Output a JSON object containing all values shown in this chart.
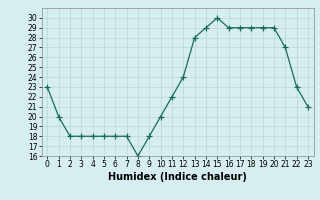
{
  "x": [
    0,
    1,
    2,
    3,
    4,
    5,
    6,
    7,
    8,
    9,
    10,
    11,
    12,
    13,
    14,
    15,
    16,
    17,
    18,
    19,
    20,
    21,
    22,
    23
  ],
  "y": [
    23,
    20,
    18,
    18,
    18,
    18,
    18,
    18,
    16,
    18,
    20,
    22,
    24,
    28,
    29,
    30,
    29,
    29,
    29,
    29,
    29,
    27,
    23,
    21
  ],
  "line_color": "#1a6b5a",
  "marker": "+",
  "marker_size": 4,
  "bg_color": "#d6eef0",
  "grid_color": "#b8d8d8",
  "xlabel": "Humidex (Indice chaleur)",
  "ylim": [
    16,
    31
  ],
  "yticks": [
    16,
    17,
    18,
    19,
    20,
    21,
    22,
    23,
    24,
    25,
    26,
    27,
    28,
    29,
    30
  ],
  "xticks": [
    0,
    1,
    2,
    3,
    4,
    5,
    6,
    7,
    8,
    9,
    10,
    11,
    12,
    13,
    14,
    15,
    16,
    17,
    18,
    19,
    20,
    21,
    22,
    23
  ],
  "tick_fontsize": 5.5,
  "label_fontsize": 7
}
